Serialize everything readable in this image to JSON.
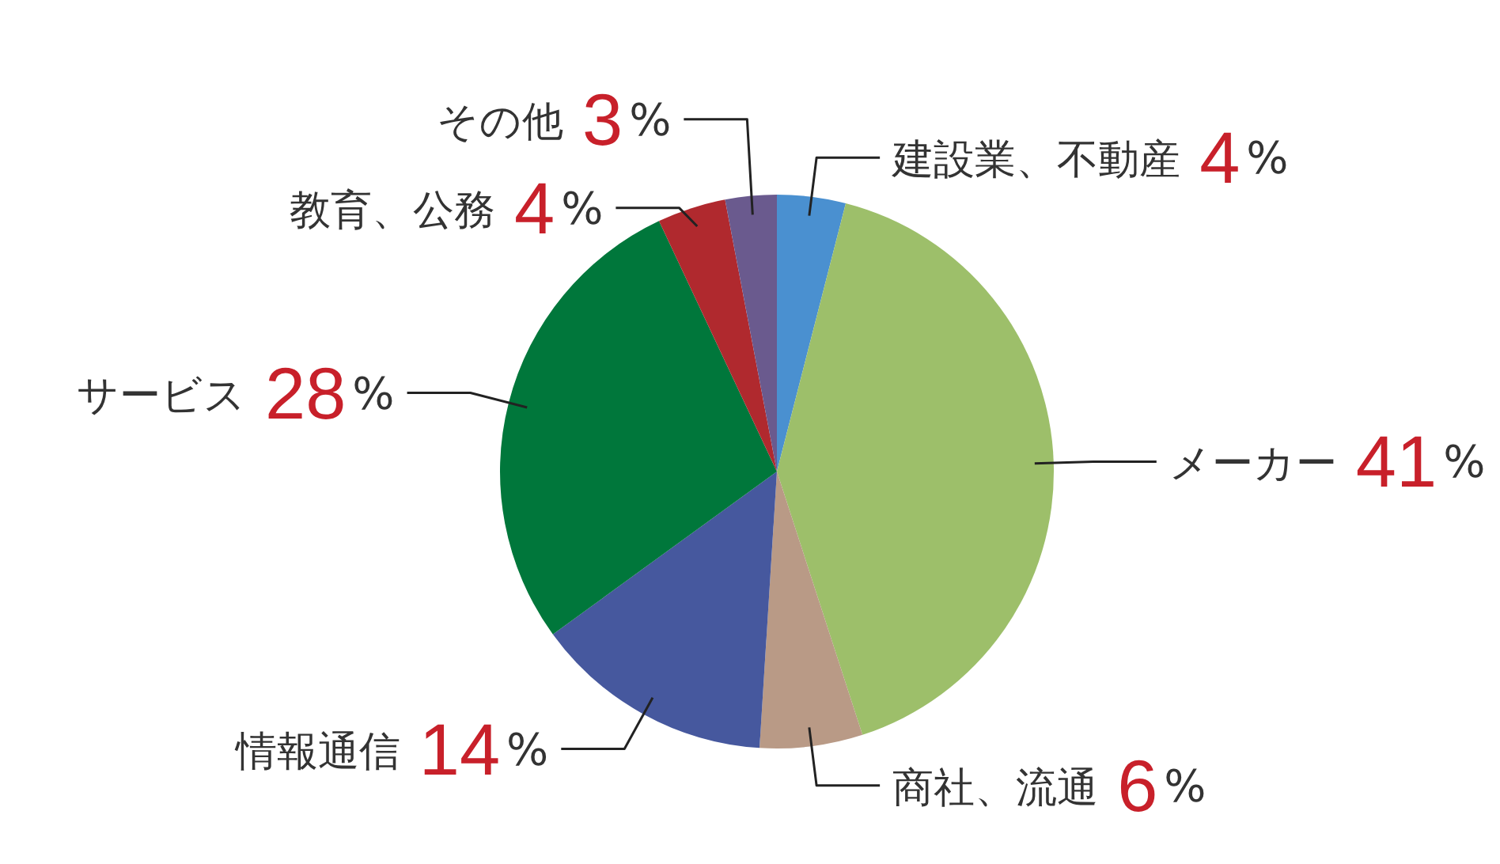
{
  "chart_data": {
    "type": "pie",
    "categories": [
      "建設業、不動産",
      "メーカー",
      "商社、流通",
      "情報通信",
      "サービス",
      "教育、公務",
      "その他"
    ],
    "values": [
      4,
      41,
      6,
      14,
      28,
      4,
      3
    ],
    "colors": [
      "#4a90d0",
      "#9dbf6a",
      "#b99a86",
      "#46589e",
      "#00773b",
      "#b0292e",
      "#6a5a8e"
    ],
    "value_labels": [
      "4%",
      "41%",
      "6%",
      "14%",
      "28%",
      "4%",
      "3%"
    ]
  }
}
